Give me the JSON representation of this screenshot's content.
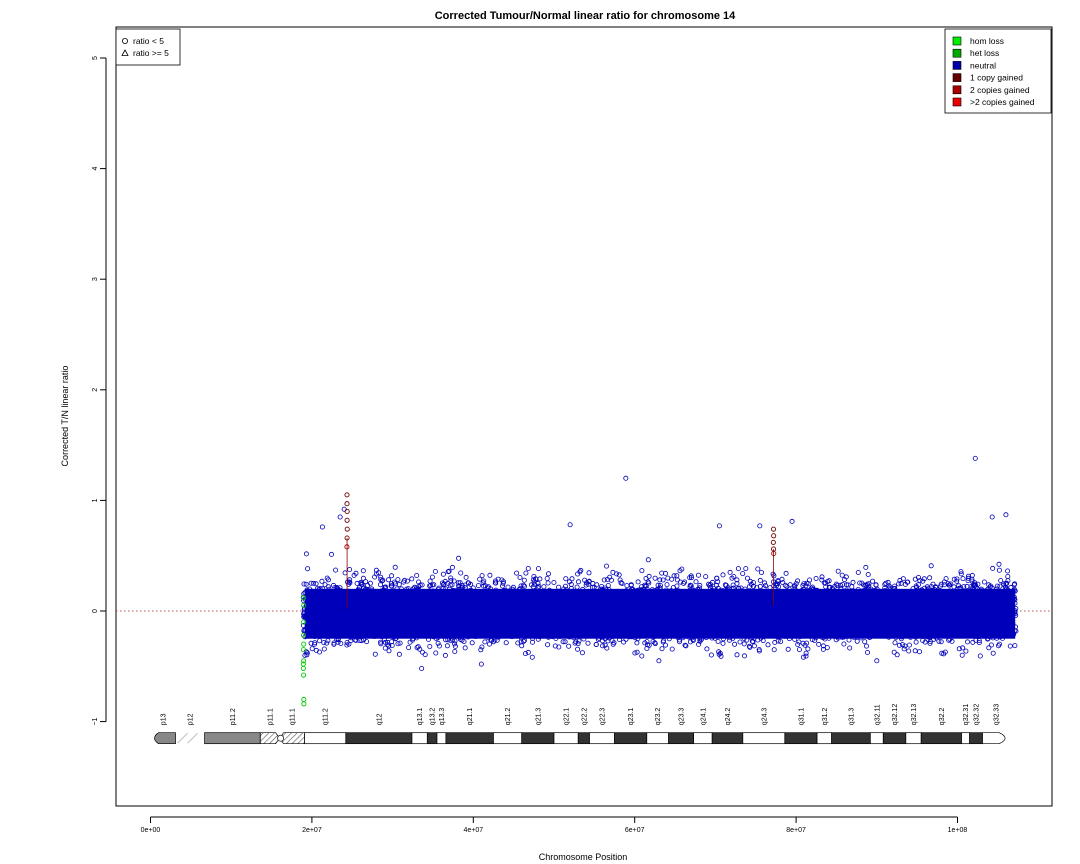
{
  "chart_data": {
    "type": "scatter",
    "title": "Corrected Tumour/Normal linear ratio for chromosome  14",
    "xlabel": "Chromosome Position",
    "ylabel": "Corrected T/N linear ratio",
    "xlim": [
      -4000000,
      112000000
    ],
    "ylim": [
      -1.75,
      5.25
    ],
    "x_ticks": [
      {
        "value": 0,
        "label": "0e+00"
      },
      {
        "value": 20000000,
        "label": "2e+07"
      },
      {
        "value": 40000000,
        "label": "4e+07"
      },
      {
        "value": 60000000,
        "label": "6e+07"
      },
      {
        "value": 80000000,
        "label": "8e+07"
      },
      {
        "value": 100000000,
        "label": "1e+08"
      }
    ],
    "y_ticks": [
      {
        "value": -1,
        "label": "−1"
      },
      {
        "value": 0,
        "label": "0"
      },
      {
        "value": 1,
        "label": "1"
      },
      {
        "value": 2,
        "label": "2"
      },
      {
        "value": 3,
        "label": "3"
      },
      {
        "value": 4,
        "label": "4"
      },
      {
        "value": 5,
        "label": "5"
      }
    ],
    "reference_line": {
      "y": 0,
      "style": "dotted",
      "color": "#c0504d"
    },
    "data_range": {
      "x_start": 18900000,
      "x_end": 107300000
    },
    "series": [
      {
        "name": "neutral",
        "color": "#0000bb",
        "shape": "circle",
        "baseline": 0.0,
        "spread": 0.36,
        "outliers": [
          {
            "x": 58900000,
            "y": 1.2
          },
          {
            "x": 102200000,
            "y": 1.38
          },
          {
            "x": 21300000,
            "y": 0.76
          },
          {
            "x": 104300000,
            "y": 0.85
          },
          {
            "x": 106000000,
            "y": 0.87
          },
          {
            "x": 52000000,
            "y": 0.78
          },
          {
            "x": 70500000,
            "y": 0.77
          },
          {
            "x": 75500000,
            "y": 0.77
          },
          {
            "x": 79500000,
            "y": 0.81
          },
          {
            "x": 23500000,
            "y": 0.85
          },
          {
            "x": 24000000,
            "y": 0.92
          },
          {
            "x": 33600000,
            "y": -0.52
          },
          {
            "x": 41000000,
            "y": -0.48
          },
          {
            "x": 63000000,
            "y": -0.45
          },
          {
            "x": 90000000,
            "y": -0.45
          }
        ]
      },
      {
        "name": "het loss",
        "color": "#00cc00",
        "shape": "circle",
        "points": [
          {
            "x": 18950000,
            "y": 0.12
          },
          {
            "x": 18980000,
            "y": 0.05
          },
          {
            "x": 18950000,
            "y": -0.1
          },
          {
            "x": 18960000,
            "y": -0.22
          },
          {
            "x": 18950000,
            "y": -0.35
          },
          {
            "x": 18970000,
            "y": -0.45
          },
          {
            "x": 18950000,
            "y": -0.52
          },
          {
            "x": 18960000,
            "y": -0.58
          },
          {
            "x": 18940000,
            "y": -0.48
          },
          {
            "x": 18980000,
            "y": -0.3
          },
          {
            "x": 19000000,
            "y": -0.8
          },
          {
            "x": 19010000,
            "y": -0.84
          }
        ]
      },
      {
        "name": "1 copy gained",
        "color": "#6e0000",
        "shape": "circle",
        "points": [
          {
            "x": 24350000,
            "y": 1.05
          },
          {
            "x": 24350000,
            "y": 0.97
          },
          {
            "x": 24370000,
            "y": 0.9
          },
          {
            "x": 24360000,
            "y": 0.82
          },
          {
            "x": 24380000,
            "y": 0.74
          },
          {
            "x": 24360000,
            "y": 0.66
          },
          {
            "x": 77200000,
            "y": 0.74
          },
          {
            "x": 77220000,
            "y": 0.68
          },
          {
            "x": 77180000,
            "y": 0.62
          },
          {
            "x": 77210000,
            "y": 0.56
          }
        ]
      },
      {
        "name": "2 copies gained",
        "color": "#aa0000",
        "shape": "circle",
        "points": [
          {
            "x": 24340000,
            "y": 0.58
          },
          {
            "x": 77230000,
            "y": 0.52
          }
        ]
      }
    ],
    "point_legend": [
      {
        "label": "ratio < 5",
        "shape": "circle"
      },
      {
        "label": "ratio >= 5",
        "shape": "triangle"
      }
    ],
    "color_legend": [
      {
        "label": "hom loss",
        "color": "#00ee00"
      },
      {
        "label": "het loss",
        "color": "#00aa00"
      },
      {
        "label": "neutral",
        "color": "#0000aa"
      },
      {
        "label": "1 copy gained",
        "color": "#660000"
      },
      {
        "label": "2 copies gained",
        "color": "#aa0000"
      },
      {
        "label": ">2 copies gained",
        "color": "#ee0000"
      }
    ],
    "ideogram": {
      "y": -1.15,
      "bands": [
        {
          "name": "p13",
          "start": 0,
          "end": 3100000,
          "stain": "gvar"
        },
        {
          "name": "p12",
          "start": 3100000,
          "end": 6700000,
          "stain": "stalk"
        },
        {
          "name": "p11.2",
          "start": 6700000,
          "end": 13600000,
          "stain": "gpos50"
        },
        {
          "name": "p11.1",
          "start": 13600000,
          "end": 16000000,
          "stain": "acen-p"
        },
        {
          "name": "q11.1",
          "start": 16000000,
          "end": 19100000,
          "stain": "acen-q"
        },
        {
          "name": "q11.2",
          "start": 19100000,
          "end": 24200000,
          "stain": "gneg"
        },
        {
          "name": "q12",
          "start": 24200000,
          "end": 32400000,
          "stain": "gpos100"
        },
        {
          "name": "q13.1",
          "start": 32400000,
          "end": 34300000,
          "stain": "gneg"
        },
        {
          "name": "q13.2",
          "start": 34300000,
          "end": 35500000,
          "stain": "gpos100"
        },
        {
          "name": "q13.3",
          "start": 35500000,
          "end": 36600000,
          "stain": "gneg"
        },
        {
          "name": "q21.1",
          "start": 36600000,
          "end": 42500000,
          "stain": "gpos100"
        },
        {
          "name": "q21.2",
          "start": 42500000,
          "end": 46000000,
          "stain": "gneg"
        },
        {
          "name": "q21.3",
          "start": 46000000,
          "end": 50000000,
          "stain": "gpos100"
        },
        {
          "name": "q22.1",
          "start": 50000000,
          "end": 53000000,
          "stain": "gneg"
        },
        {
          "name": "q22.2",
          "start": 53000000,
          "end": 54400000,
          "stain": "gpos100"
        },
        {
          "name": "q22.3",
          "start": 54400000,
          "end": 57500000,
          "stain": "gneg"
        },
        {
          "name": "q23.1",
          "start": 57500000,
          "end": 61500000,
          "stain": "gpos100"
        },
        {
          "name": "q23.2",
          "start": 61500000,
          "end": 64200000,
          "stain": "gneg"
        },
        {
          "name": "q23.3",
          "start": 64200000,
          "end": 67300000,
          "stain": "gpos100"
        },
        {
          "name": "q24.1",
          "start": 67300000,
          "end": 69600000,
          "stain": "gneg"
        },
        {
          "name": "q24.2",
          "start": 69600000,
          "end": 73400000,
          "stain": "gpos100"
        },
        {
          "name": "q24.3",
          "start": 73400000,
          "end": 78600000,
          "stain": "gneg"
        },
        {
          "name": "q31.1",
          "start": 78600000,
          "end": 82600000,
          "stain": "gpos100"
        },
        {
          "name": "q31.2",
          "start": 82600000,
          "end": 84400000,
          "stain": "gneg"
        },
        {
          "name": "q31.3",
          "start": 84400000,
          "end": 89200000,
          "stain": "gpos100"
        },
        {
          "name": "q32.11",
          "start": 89200000,
          "end": 90800000,
          "stain": "gneg"
        },
        {
          "name": "q32.12",
          "start": 90800000,
          "end": 93600000,
          "stain": "gpos100"
        },
        {
          "name": "q32.13",
          "start": 93600000,
          "end": 95500000,
          "stain": "gneg"
        },
        {
          "name": "q32.2",
          "start": 95500000,
          "end": 100500000,
          "stain": "gpos100"
        },
        {
          "name": "q32.31",
          "start": 100500000,
          "end": 101500000,
          "stain": "gneg"
        },
        {
          "name": "q32.32",
          "start": 101500000,
          "end": 103100000,
          "stain": "gpos100"
        },
        {
          "name": "q32.33",
          "start": 103100000,
          "end": 106400000,
          "stain": "gneg"
        }
      ]
    }
  }
}
